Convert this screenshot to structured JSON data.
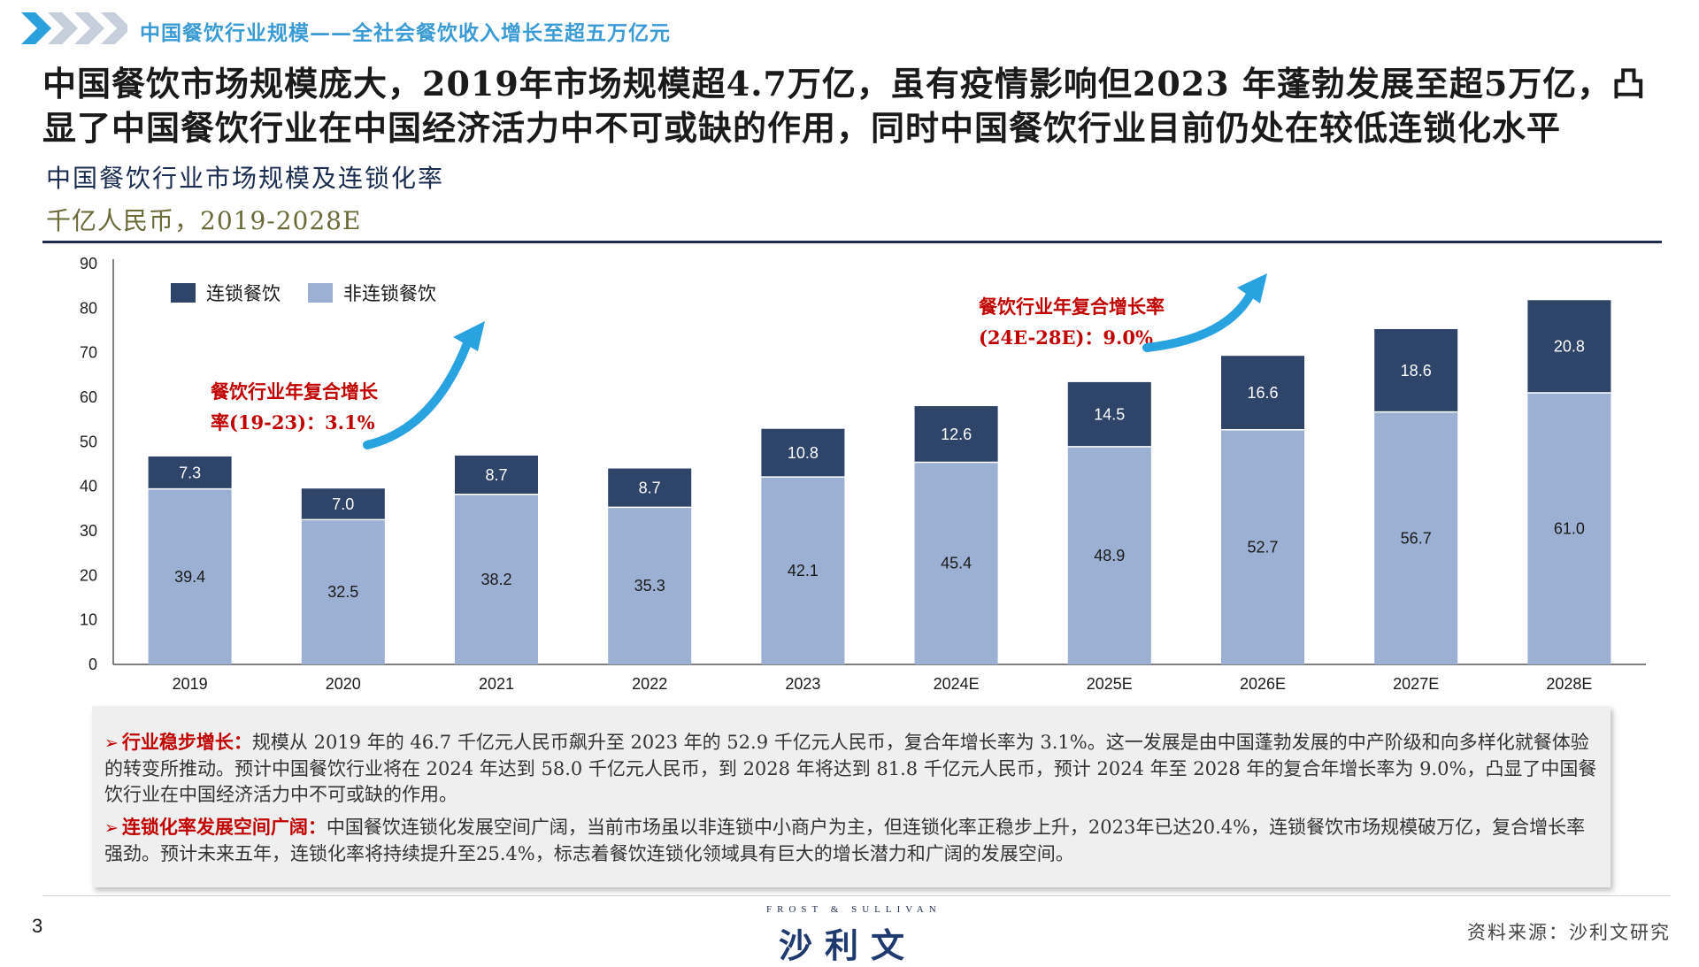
{
  "header": {
    "section_title": "中国餐饮行业规模——全社会餐饮收入增长至超五万亿元"
  },
  "headline": "中国餐饮市场规模庞大，2019年市场规模超4.7万亿，虽有疫情影响但2023 年蓬勃发展至超5万亿，凸显了中国餐饮行业在中国经济活力中不可或缺的作用，同时中国餐饮行业目前仍处在较低连锁化水平",
  "chart_subtitle": "中国餐饮行业市场规模及连锁化率",
  "chart_unit": "千亿人民币，2019-2028E",
  "colors": {
    "chain": "#2e4469",
    "nonchain": "#9bb0d2",
    "arrow": "#29a3e0",
    "accent_red": "#c00000"
  },
  "chart_data": {
    "type": "bar",
    "stacked": true,
    "categories": [
      "2019",
      "2020",
      "2021",
      "2022",
      "2023",
      "2024E",
      "2025E",
      "2026E",
      "2027E",
      "2028E"
    ],
    "series": [
      {
        "name": "非连锁餐饮",
        "values": [
          39.4,
          32.5,
          38.2,
          35.3,
          42.1,
          45.4,
          48.9,
          52.7,
          56.7,
          61.0
        ]
      },
      {
        "name": "连锁餐饮",
        "values": [
          7.3,
          7.0,
          8.7,
          8.7,
          10.8,
          12.6,
          14.5,
          16.6,
          18.6,
          20.8
        ]
      }
    ],
    "nonchain_labels": [
      "39.4",
      "32.5",
      "38.2",
      "35.3",
      "42.1",
      "45.4",
      "48.9",
      "52.7",
      "56.7",
      "61.0"
    ],
    "chain_labels": [
      "7.3",
      "7.0",
      "8.7",
      "8.7",
      "10.8",
      "12.6",
      "14.5",
      "16.6",
      "18.6",
      "20.8"
    ],
    "y_ticks": [
      "0",
      "10",
      "20",
      "30",
      "40",
      "50",
      "60",
      "70",
      "80",
      "90"
    ],
    "ylim": [
      0,
      90
    ],
    "legend": {
      "placement": "top-left",
      "chain_label": "连锁餐饮",
      "nonchain_label": "非连锁餐饮"
    },
    "annotations": [
      {
        "line1": "餐饮行业年复合增长",
        "line2": "率(19-23)：3.1%"
      },
      {
        "line1": "餐饮行业年复合增长率",
        "line2": "(24E-28E)：9.0%"
      }
    ],
    "grid": false
  },
  "bullets": [
    {
      "marker": "➢",
      "label": "行业稳步增长：",
      "text": "规模从 2019 年的 46.7 千亿元人民币飙升至 2023 年的 52.9 千亿元人民币，复合年增长率为 3.1%。这一发展是由中国蓬勃发展的中产阶级和向多样化就餐体验的转变所推动。预计中国餐饮行业将在 2024 年达到 58.0 千亿元人民币，到 2028 年将达到 81.8 千亿元人民币，预计 2024 年至 2028 年的复合年增长率为 9.0%，凸显了中国餐饮行业在中国经济活力中不可或缺的作用。"
    },
    {
      "marker": "➢",
      "label": "连锁化率发展空间广阔：",
      "text": "中国餐饮连锁化发展空间广阔，当前市场虽以非连锁中小商户为主，但连锁化率正稳步上升，2023年已达20.4%，连锁餐饮市场规模破万亿，复合增长率强劲。预计未来五年，连锁化率将持续提升至25.4%，标志着餐饮连锁化领域具有巨大的增长潜力和广阔的发展空间。"
    }
  ],
  "footer": {
    "page_number": "3",
    "logo_en": "FROST & SULLIVAN",
    "logo_cn": "沙利文",
    "source": "资料来源：沙利文研究"
  }
}
